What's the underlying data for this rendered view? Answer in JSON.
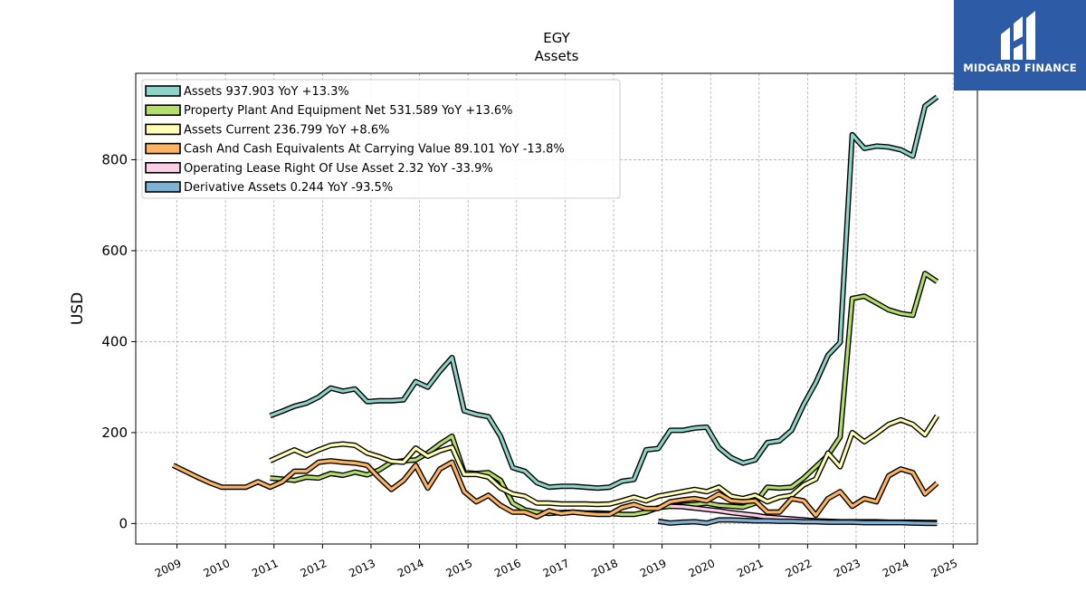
{
  "brand": {
    "name": "MIDGARD FINANCE",
    "background": "#2d5ba6"
  },
  "chart_data": {
    "type": "line",
    "title": "EGY",
    "subtitle": "Assets",
    "ylabel": "USD",
    "xlabel": "",
    "xlim": [
      2008.15,
      2025.5
    ],
    "ylim": [
      -45,
      990
    ],
    "yticks": [
      0,
      200,
      400,
      600,
      800
    ],
    "xticks": [
      "2009",
      "2010",
      "2011",
      "2012",
      "2013",
      "2014",
      "2015",
      "2016",
      "2017",
      "2018",
      "2019",
      "2020",
      "2021",
      "2022",
      "2023",
      "2024",
      "2025"
    ],
    "grid": true,
    "legend_position": "upper-left",
    "series": [
      {
        "name": "Assets  937.903 YoY +13.3%",
        "color": "#8dd3c7",
        "points": [
          [
            2010.92,
            237
          ],
          [
            2011.17,
            247
          ],
          [
            2011.42,
            258
          ],
          [
            2011.67,
            265
          ],
          [
            2011.92,
            278
          ],
          [
            2012.17,
            298
          ],
          [
            2012.42,
            291
          ],
          [
            2012.67,
            296
          ],
          [
            2012.92,
            268
          ],
          [
            2013.17,
            270
          ],
          [
            2013.42,
            270
          ],
          [
            2013.67,
            272
          ],
          [
            2013.92,
            312
          ],
          [
            2014.17,
            300
          ],
          [
            2014.42,
            335
          ],
          [
            2014.67,
            365
          ],
          [
            2014.92,
            248
          ],
          [
            2015.17,
            240
          ],
          [
            2015.42,
            235
          ],
          [
            2015.67,
            192
          ],
          [
            2015.92,
            123
          ],
          [
            2016.17,
            115
          ],
          [
            2016.42,
            90
          ],
          [
            2016.67,
            80
          ],
          [
            2016.92,
            82
          ],
          [
            2017.17,
            82
          ],
          [
            2017.42,
            80
          ],
          [
            2017.67,
            78
          ],
          [
            2017.92,
            80
          ],
          [
            2018.17,
            93
          ],
          [
            2018.42,
            97
          ],
          [
            2018.67,
            162
          ],
          [
            2018.92,
            165
          ],
          [
            2019.17,
            205
          ],
          [
            2019.42,
            205
          ],
          [
            2019.67,
            210
          ],
          [
            2019.92,
            212
          ],
          [
            2020.17,
            167
          ],
          [
            2020.42,
            145
          ],
          [
            2020.67,
            133
          ],
          [
            2020.92,
            140
          ],
          [
            2021.17,
            178
          ],
          [
            2021.42,
            182
          ],
          [
            2021.67,
            205
          ],
          [
            2021.92,
            262
          ],
          [
            2022.17,
            310
          ],
          [
            2022.42,
            370
          ],
          [
            2022.67,
            398
          ],
          [
            2022.92,
            855
          ],
          [
            2023.17,
            825
          ],
          [
            2023.42,
            830
          ],
          [
            2023.67,
            828
          ],
          [
            2023.92,
            822
          ],
          [
            2024.17,
            808
          ],
          [
            2024.42,
            918
          ],
          [
            2024.67,
            938
          ]
        ]
      },
      {
        "name": "Property Plant And Equipment Net  531.589 YoY +13.6%",
        "color": "#b3de69",
        "points": [
          [
            2010.92,
            100
          ],
          [
            2011.17,
            98
          ],
          [
            2011.42,
            95
          ],
          [
            2011.67,
            102
          ],
          [
            2011.92,
            100
          ],
          [
            2012.17,
            110
          ],
          [
            2012.42,
            106
          ],
          [
            2012.67,
            113
          ],
          [
            2012.92,
            107
          ],
          [
            2013.17,
            118
          ],
          [
            2013.42,
            135
          ],
          [
            2013.67,
            138
          ],
          [
            2013.92,
            140
          ],
          [
            2014.17,
            155
          ],
          [
            2014.42,
            175
          ],
          [
            2014.67,
            192
          ],
          [
            2014.92,
            112
          ],
          [
            2015.17,
            110
          ],
          [
            2015.42,
            112
          ],
          [
            2015.67,
            95
          ],
          [
            2015.92,
            45
          ],
          [
            2016.17,
            30
          ],
          [
            2016.42,
            25
          ],
          [
            2016.67,
            22
          ],
          [
            2016.92,
            24
          ],
          [
            2017.17,
            25
          ],
          [
            2017.42,
            23
          ],
          [
            2017.67,
            23
          ],
          [
            2017.92,
            22
          ],
          [
            2018.17,
            20
          ],
          [
            2018.42,
            20
          ],
          [
            2018.67,
            25
          ],
          [
            2018.92,
            35
          ],
          [
            2019.17,
            38
          ],
          [
            2019.42,
            40
          ],
          [
            2019.67,
            42
          ],
          [
            2019.92,
            45
          ],
          [
            2020.17,
            40
          ],
          [
            2020.42,
            38
          ],
          [
            2020.67,
            36
          ],
          [
            2020.92,
            45
          ],
          [
            2021.17,
            80
          ],
          [
            2021.42,
            78
          ],
          [
            2021.67,
            80
          ],
          [
            2021.92,
            100
          ],
          [
            2022.17,
            125
          ],
          [
            2022.42,
            150
          ],
          [
            2022.67,
            190
          ],
          [
            2022.92,
            495
          ],
          [
            2023.17,
            500
          ],
          [
            2023.42,
            485
          ],
          [
            2023.67,
            470
          ],
          [
            2023.92,
            462
          ],
          [
            2024.17,
            458
          ],
          [
            2024.42,
            550
          ],
          [
            2024.67,
            532
          ]
        ]
      },
      {
        "name": "Assets Current  236.799 YoY +8.6%",
        "color": "#ffffb3",
        "points": [
          [
            2010.92,
            138
          ],
          [
            2011.17,
            150
          ],
          [
            2011.42,
            162
          ],
          [
            2011.67,
            150
          ],
          [
            2011.92,
            162
          ],
          [
            2012.17,
            172
          ],
          [
            2012.42,
            175
          ],
          [
            2012.67,
            172
          ],
          [
            2012.92,
            155
          ],
          [
            2013.17,
            147
          ],
          [
            2013.42,
            137
          ],
          [
            2013.67,
            135
          ],
          [
            2013.92,
            166
          ],
          [
            2014.17,
            148
          ],
          [
            2014.42,
            160
          ],
          [
            2014.67,
            168
          ],
          [
            2014.92,
            108
          ],
          [
            2015.17,
            108
          ],
          [
            2015.42,
            102
          ],
          [
            2015.67,
            78
          ],
          [
            2015.92,
            65
          ],
          [
            2016.17,
            60
          ],
          [
            2016.42,
            45
          ],
          [
            2016.67,
            45
          ],
          [
            2016.92,
            43
          ],
          [
            2017.17,
            43
          ],
          [
            2017.42,
            43
          ],
          [
            2017.67,
            42
          ],
          [
            2017.92,
            43
          ],
          [
            2018.17,
            50
          ],
          [
            2018.42,
            58
          ],
          [
            2018.67,
            50
          ],
          [
            2018.92,
            60
          ],
          [
            2019.17,
            65
          ],
          [
            2019.42,
            70
          ],
          [
            2019.67,
            75
          ],
          [
            2019.92,
            70
          ],
          [
            2020.17,
            80
          ],
          [
            2020.42,
            60
          ],
          [
            2020.67,
            55
          ],
          [
            2020.92,
            62
          ],
          [
            2021.17,
            48
          ],
          [
            2021.42,
            58
          ],
          [
            2021.67,
            62
          ],
          [
            2021.92,
            85
          ],
          [
            2022.17,
            98
          ],
          [
            2022.42,
            155
          ],
          [
            2022.67,
            125
          ],
          [
            2022.92,
            200
          ],
          [
            2023.17,
            180
          ],
          [
            2023.42,
            198
          ],
          [
            2023.67,
            218
          ],
          [
            2023.92,
            228
          ],
          [
            2024.17,
            218
          ],
          [
            2024.42,
            195
          ],
          [
            2024.67,
            237
          ]
        ]
      },
      {
        "name": "Cash And Cash Equivalents At Carrying Value  89.101 YoY -13.8%",
        "color": "#fdb462",
        "points": [
          [
            2008.92,
            128
          ],
          [
            2009.17,
            115
          ],
          [
            2009.42,
            102
          ],
          [
            2009.67,
            90
          ],
          [
            2009.92,
            80
          ],
          [
            2010.17,
            80
          ],
          [
            2010.42,
            80
          ],
          [
            2010.67,
            92
          ],
          [
            2010.92,
            80
          ],
          [
            2011.17,
            92
          ],
          [
            2011.42,
            115
          ],
          [
            2011.67,
            115
          ],
          [
            2011.92,
            135
          ],
          [
            2012.17,
            138
          ],
          [
            2012.42,
            135
          ],
          [
            2012.67,
            133
          ],
          [
            2012.92,
            128
          ],
          [
            2013.17,
            100
          ],
          [
            2013.42,
            75
          ],
          [
            2013.67,
            95
          ],
          [
            2013.92,
            128
          ],
          [
            2014.17,
            78
          ],
          [
            2014.42,
            120
          ],
          [
            2014.67,
            135
          ],
          [
            2014.92,
            70
          ],
          [
            2015.17,
            48
          ],
          [
            2015.42,
            62
          ],
          [
            2015.67,
            40
          ],
          [
            2015.92,
            25
          ],
          [
            2016.17,
            25
          ],
          [
            2016.42,
            15
          ],
          [
            2016.67,
            28
          ],
          [
            2016.92,
            22
          ],
          [
            2017.17,
            25
          ],
          [
            2017.42,
            22
          ],
          [
            2017.67,
            20
          ],
          [
            2017.92,
            20
          ],
          [
            2018.17,
            35
          ],
          [
            2018.42,
            42
          ],
          [
            2018.67,
            33
          ],
          [
            2018.92,
            33
          ],
          [
            2019.17,
            48
          ],
          [
            2019.42,
            52
          ],
          [
            2019.67,
            55
          ],
          [
            2019.92,
            50
          ],
          [
            2020.17,
            65
          ],
          [
            2020.42,
            50
          ],
          [
            2020.67,
            48
          ],
          [
            2020.92,
            50
          ],
          [
            2021.17,
            25
          ],
          [
            2021.42,
            25
          ],
          [
            2021.67,
            55
          ],
          [
            2021.92,
            50
          ],
          [
            2022.17,
            18
          ],
          [
            2022.42,
            55
          ],
          [
            2022.67,
            70
          ],
          [
            2022.92,
            38
          ],
          [
            2023.17,
            55
          ],
          [
            2023.42,
            48
          ],
          [
            2023.67,
            105
          ],
          [
            2023.92,
            120
          ],
          [
            2024.17,
            112
          ],
          [
            2024.42,
            65
          ],
          [
            2024.67,
            89
          ]
        ]
      },
      {
        "name": "Operating Lease Right Of Use Asset  2.32 YoY -33.9%",
        "color": "#fccde5",
        "points": [
          [
            2019.17,
            38
          ],
          [
            2019.42,
            37
          ],
          [
            2019.67,
            34
          ],
          [
            2019.92,
            31
          ],
          [
            2020.17,
            28
          ],
          [
            2020.42,
            24
          ],
          [
            2020.67,
            21
          ],
          [
            2020.92,
            18
          ],
          [
            2021.17,
            14
          ],
          [
            2021.42,
            12
          ],
          [
            2021.67,
            10
          ],
          [
            2021.92,
            8
          ],
          [
            2022.17,
            6
          ],
          [
            2022.42,
            5
          ],
          [
            2022.67,
            4
          ],
          [
            2022.92,
            4
          ],
          [
            2023.17,
            4
          ],
          [
            2023.42,
            4
          ],
          [
            2023.67,
            3
          ],
          [
            2023.92,
            3
          ],
          [
            2024.17,
            3
          ],
          [
            2024.42,
            2.5
          ],
          [
            2024.67,
            2.3
          ]
        ]
      },
      {
        "name": "Derivative Assets  0.244 YoY -93.5%",
        "color": "#80b1d3",
        "points": [
          [
            2018.92,
            5
          ],
          [
            2019.17,
            1
          ],
          [
            2019.42,
            3
          ],
          [
            2019.67,
            4
          ],
          [
            2019.92,
            1
          ],
          [
            2020.17,
            8
          ],
          [
            2020.42,
            8
          ],
          [
            2020.67,
            7
          ],
          [
            2020.92,
            6
          ],
          [
            2021.17,
            6
          ],
          [
            2021.42,
            5
          ],
          [
            2021.67,
            5
          ],
          [
            2021.92,
            4
          ],
          [
            2022.17,
            4
          ],
          [
            2022.42,
            3
          ],
          [
            2022.67,
            3
          ],
          [
            2022.92,
            3
          ],
          [
            2023.17,
            2
          ],
          [
            2023.42,
            2
          ],
          [
            2023.67,
            2
          ],
          [
            2023.92,
            2
          ],
          [
            2024.17,
            1
          ],
          [
            2024.42,
            0.5
          ],
          [
            2024.67,
            0.24
          ]
        ]
      }
    ]
  }
}
